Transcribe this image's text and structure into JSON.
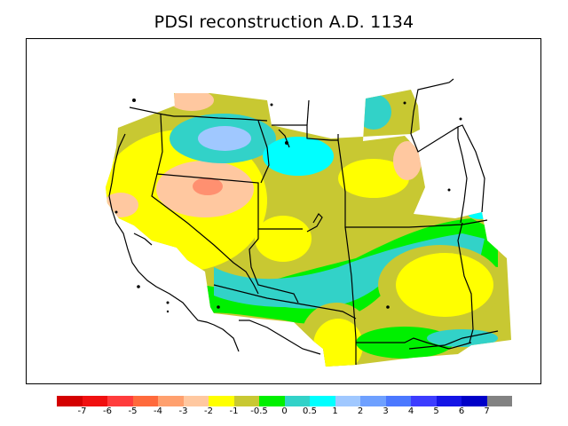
{
  "title": "PDSI reconstruction A.D. 1134",
  "legend": {
    "colors": [
      "#d40000",
      "#f01010",
      "#ff3c3c",
      "#ff6a3c",
      "#ffa06e",
      "#ffc8a0",
      "#ffff00",
      "#c8c832",
      "#00f000",
      "#32d2c8",
      "#00ffff",
      "#a0c8ff",
      "#6ea0ff",
      "#4b78ff",
      "#3c3cff",
      "#1414e6",
      "#0000c8",
      "#828282"
    ],
    "labels": [
      "-7",
      "-6",
      "-5",
      "-4",
      "-3",
      "-2",
      "-1",
      "-0.5",
      "0",
      "0.5",
      "1",
      "2",
      "3",
      "4",
      "5",
      "6",
      "7"
    ]
  }
}
